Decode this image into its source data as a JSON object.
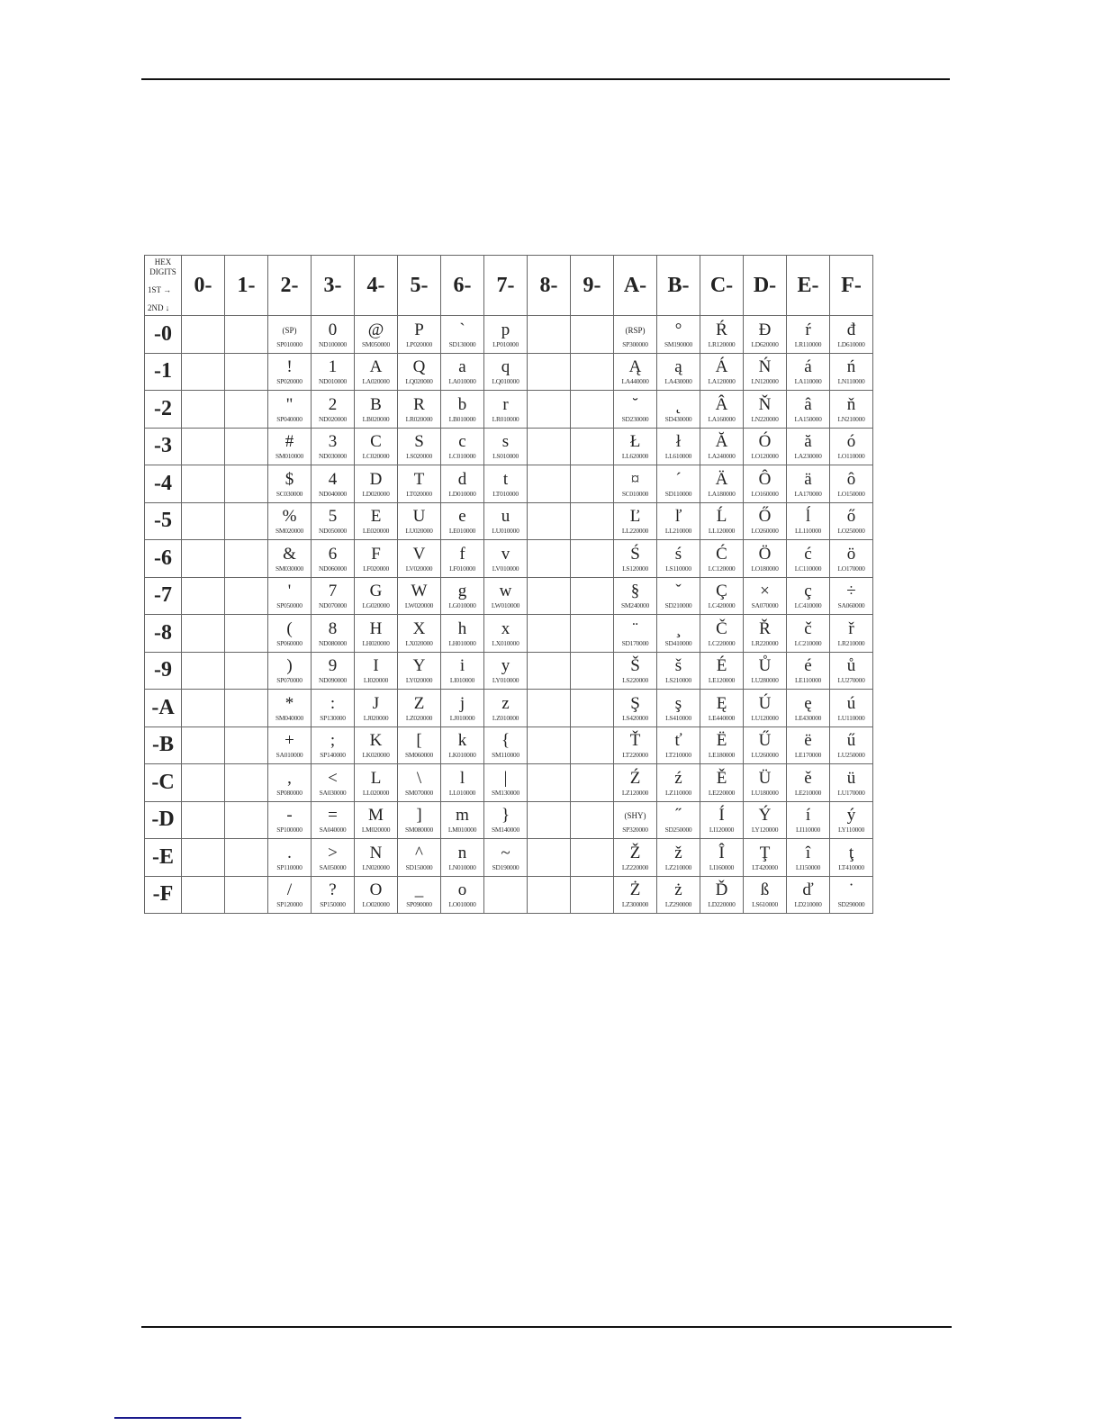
{
  "table": {
    "corner": {
      "line1": "HEX DIGITS",
      "line2": "1ST →",
      "line3": "2ND ↓"
    },
    "row_headers": [
      "-0",
      "-1",
      "-2",
      "-3",
      "-4",
      "-5",
      "-6",
      "-7",
      "-8",
      "-9",
      "-A",
      "-B",
      "-C",
      "-D",
      "-E",
      "-F"
    ],
    "columns": [
      {
        "header": "0-",
        "cells": []
      },
      {
        "header": "1-",
        "cells": []
      },
      {
        "header": "2-",
        "cells": [
          [
            "(SP)",
            "SP010000"
          ],
          [
            "!",
            "SP020000"
          ],
          [
            "\"",
            "SP040000"
          ],
          [
            "#",
            "SM010000"
          ],
          [
            "$",
            "SC030000"
          ],
          [
            "%",
            "SM020000"
          ],
          [
            "&",
            "SM030000"
          ],
          [
            "'",
            "SP050000"
          ],
          [
            "(",
            "SP060000"
          ],
          [
            ")",
            "SP070000"
          ],
          [
            "*",
            "SM040000"
          ],
          [
            "+",
            "SA010000"
          ],
          [
            ",",
            "SP080000"
          ],
          [
            "-",
            "SP100000"
          ],
          [
            ".",
            "SP110000"
          ],
          [
            "/",
            "SP120000"
          ]
        ]
      },
      {
        "header": "3-",
        "cells": [
          [
            "0",
            "ND100000"
          ],
          [
            "1",
            "ND010000"
          ],
          [
            "2",
            "ND020000"
          ],
          [
            "3",
            "ND030000"
          ],
          [
            "4",
            "ND040000"
          ],
          [
            "5",
            "ND050000"
          ],
          [
            "6",
            "ND060000"
          ],
          [
            "7",
            "ND070000"
          ],
          [
            "8",
            "ND080000"
          ],
          [
            "9",
            "ND090000"
          ],
          [
            ":",
            "SP130000"
          ],
          [
            ";",
            "SP140000"
          ],
          [
            "<",
            "SA030000"
          ],
          [
            "=",
            "SA040000"
          ],
          [
            ">",
            "SA050000"
          ],
          [
            "?",
            "SP150000"
          ]
        ]
      },
      {
        "header": "4-",
        "cells": [
          [
            "@",
            "SM050000"
          ],
          [
            "A",
            "LA020000"
          ],
          [
            "B",
            "LB020000"
          ],
          [
            "C",
            "LC020000"
          ],
          [
            "D",
            "LD020000"
          ],
          [
            "E",
            "LE020000"
          ],
          [
            "F",
            "LF020000"
          ],
          [
            "G",
            "LG020000"
          ],
          [
            "H",
            "LH020000"
          ],
          [
            "I",
            "LI020000"
          ],
          [
            "J",
            "LJ020000"
          ],
          [
            "K",
            "LK020000"
          ],
          [
            "L",
            "LL020000"
          ],
          [
            "M",
            "LM020000"
          ],
          [
            "N",
            "LN020000"
          ],
          [
            "O",
            "LO020000"
          ]
        ]
      },
      {
        "header": "5-",
        "cells": [
          [
            "P",
            "LP020000"
          ],
          [
            "Q",
            "LQ020000"
          ],
          [
            "R",
            "LR020000"
          ],
          [
            "S",
            "LS020000"
          ],
          [
            "T",
            "LT020000"
          ],
          [
            "U",
            "LU020000"
          ],
          [
            "V",
            "LV020000"
          ],
          [
            "W",
            "LW020000"
          ],
          [
            "X",
            "LX020000"
          ],
          [
            "Y",
            "LY020000"
          ],
          [
            "Z",
            "LZ020000"
          ],
          [
            "[",
            "SM060000"
          ],
          [
            "\\",
            "SM070000"
          ],
          [
            "]",
            "SM080000"
          ],
          [
            "^",
            "SD150000"
          ],
          [
            "_",
            "SP090000"
          ]
        ]
      },
      {
        "header": "6-",
        "cells": [
          [
            "`",
            "SD130000"
          ],
          [
            "a",
            "LA010000"
          ],
          [
            "b",
            "LB010000"
          ],
          [
            "c",
            "LC010000"
          ],
          [
            "d",
            "LD010000"
          ],
          [
            "e",
            "LE010000"
          ],
          [
            "f",
            "LF010000"
          ],
          [
            "g",
            "LG010000"
          ],
          [
            "h",
            "LH010000"
          ],
          [
            "i",
            "LI010000"
          ],
          [
            "j",
            "LJ010000"
          ],
          [
            "k",
            "LK010000"
          ],
          [
            "l",
            "LL010000"
          ],
          [
            "m",
            "LM010000"
          ],
          [
            "n",
            "LN010000"
          ],
          [
            "o",
            "LO010000"
          ]
        ]
      },
      {
        "header": "7-",
        "cells": [
          [
            "p",
            "LP010000"
          ],
          [
            "q",
            "LQ010000"
          ],
          [
            "r",
            "LR010000"
          ],
          [
            "s",
            "LS010000"
          ],
          [
            "t",
            "LT010000"
          ],
          [
            "u",
            "LU010000"
          ],
          [
            "v",
            "LV010000"
          ],
          [
            "w",
            "LW010000"
          ],
          [
            "x",
            "LX010000"
          ],
          [
            "y",
            "LY010000"
          ],
          [
            "z",
            "LZ010000"
          ],
          [
            "{",
            "SM110000"
          ],
          [
            "|",
            "SM130000"
          ],
          [
            "}",
            "SM140000"
          ],
          [
            "~",
            "SD190000"
          ],
          null
        ]
      },
      {
        "header": "8-",
        "cells": []
      },
      {
        "header": "9-",
        "cells": []
      },
      {
        "header": "A-",
        "cells": [
          [
            "(RSP)",
            "SP300000"
          ],
          [
            "Ą",
            "LA440000"
          ],
          [
            "˘",
            "SD230000"
          ],
          [
            "Ł",
            "LL620000"
          ],
          [
            "¤",
            "SC010000"
          ],
          [
            "Ľ",
            "LL220000"
          ],
          [
            "Ś",
            "LS120000"
          ],
          [
            "§",
            "SM240000"
          ],
          [
            "¨",
            "SD170000"
          ],
          [
            "Š",
            "LS220000"
          ],
          [
            "Ş",
            "LS420000"
          ],
          [
            "Ť",
            "LT220000"
          ],
          [
            "Ź",
            "LZ120000"
          ],
          [
            "(SHY)",
            "SP320000"
          ],
          [
            "Ž",
            "LZ220000"
          ],
          [
            "Ż",
            "LZ300000"
          ]
        ]
      },
      {
        "header": "B-",
        "cells": [
          [
            "°",
            "SM190000"
          ],
          [
            "ą",
            "LA430000"
          ],
          [
            "˛",
            "SD430000"
          ],
          [
            "ł",
            "LL610000"
          ],
          [
            "´",
            "SD110000"
          ],
          [
            "ľ",
            "LL210000"
          ],
          [
            "ś",
            "LS110000"
          ],
          [
            "ˇ",
            "SD210000"
          ],
          [
            "¸",
            "SD410000"
          ],
          [
            "š",
            "LS210000"
          ],
          [
            "ş",
            "LS410000"
          ],
          [
            "ť",
            "LT210000"
          ],
          [
            "ź",
            "LZ110000"
          ],
          [
            "˝",
            "SD250000"
          ],
          [
            "ž",
            "LZ210000"
          ],
          [
            "ż",
            "LZ290000"
          ]
        ]
      },
      {
        "header": "C-",
        "cells": [
          [
            "Ŕ",
            "LR120000"
          ],
          [
            "Á",
            "LA120000"
          ],
          [
            "Â",
            "LA160000"
          ],
          [
            "Ă",
            "LA240000"
          ],
          [
            "Ä",
            "LA180000"
          ],
          [
            "Ĺ",
            "LL120000"
          ],
          [
            "Ć",
            "LC120000"
          ],
          [
            "Ç",
            "LC420000"
          ],
          [
            "Č",
            "LC220000"
          ],
          [
            "É",
            "LE120000"
          ],
          [
            "Ę",
            "LE440000"
          ],
          [
            "Ë",
            "LE180000"
          ],
          [
            "Ě",
            "LE220000"
          ],
          [
            "Í",
            "LI120000"
          ],
          [
            "Î",
            "LI160000"
          ],
          [
            "Ď",
            "LD220000"
          ]
        ]
      },
      {
        "header": "D-",
        "cells": [
          [
            "Đ",
            "LD620000"
          ],
          [
            "Ń",
            "LN120000"
          ],
          [
            "Ň",
            "LN220000"
          ],
          [
            "Ó",
            "LO120000"
          ],
          [
            "Ô",
            "LO160000"
          ],
          [
            "Ő",
            "LO260000"
          ],
          [
            "Ö",
            "LO180000"
          ],
          [
            "×",
            "SA070000"
          ],
          [
            "Ř",
            "LR220000"
          ],
          [
            "Ů",
            "LU280000"
          ],
          [
            "Ú",
            "LU120000"
          ],
          [
            "Ű",
            "LU260000"
          ],
          [
            "Ü",
            "LU180000"
          ],
          [
            "Ý",
            "LY120000"
          ],
          [
            "Ţ",
            "LT420000"
          ],
          [
            "ß",
            "LS610000"
          ]
        ]
      },
      {
        "header": "E-",
        "cells": [
          [
            "ŕ",
            "LR110000"
          ],
          [
            "á",
            "LA110000"
          ],
          [
            "â",
            "LA150000"
          ],
          [
            "ă",
            "LA230000"
          ],
          [
            "ä",
            "LA170000"
          ],
          [
            "ĺ",
            "LL110000"
          ],
          [
            "ć",
            "LC110000"
          ],
          [
            "ç",
            "LC410000"
          ],
          [
            "č",
            "LC210000"
          ],
          [
            "é",
            "LE110000"
          ],
          [
            "ę",
            "LE430000"
          ],
          [
            "ë",
            "LE170000"
          ],
          [
            "ě",
            "LE210000"
          ],
          [
            "í",
            "LI110000"
          ],
          [
            "î",
            "LI150000"
          ],
          [
            "ď",
            "LD210000"
          ]
        ]
      },
      {
        "header": "F-",
        "cells": [
          [
            "đ",
            "LD610000"
          ],
          [
            "ń",
            "LN110000"
          ],
          [
            "ň",
            "LN210000"
          ],
          [
            "ó",
            "LO110000"
          ],
          [
            "ô",
            "LO150000"
          ],
          [
            "ő",
            "LO250000"
          ],
          [
            "ö",
            "LO170000"
          ],
          [
            "÷",
            "SA060000"
          ],
          [
            "ř",
            "LR210000"
          ],
          [
            "ů",
            "LU270000"
          ],
          [
            "ú",
            "LU110000"
          ],
          [
            "ű",
            "LU250000"
          ],
          [
            "ü",
            "LU170000"
          ],
          [
            "ý",
            "LY110000"
          ],
          [
            "ţ",
            "LT410000"
          ],
          [
            "˙",
            "SD290000"
          ]
        ]
      }
    ]
  }
}
